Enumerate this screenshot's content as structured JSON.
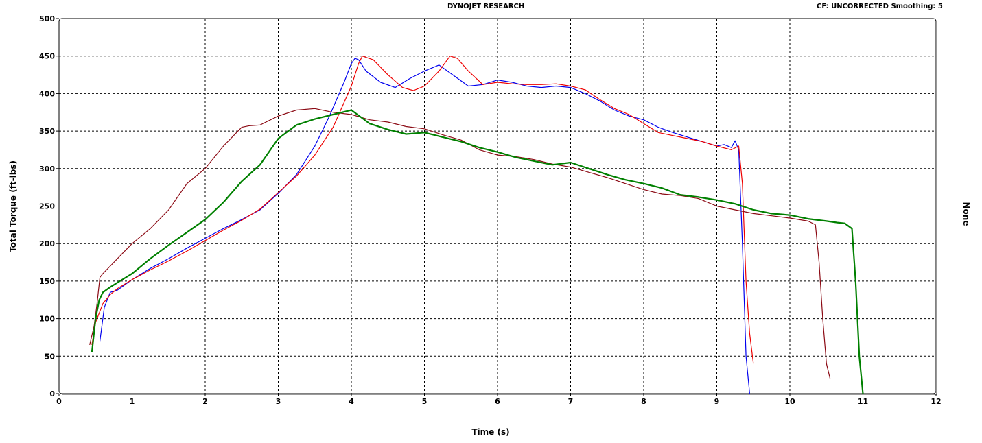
{
  "header": {
    "title": "DYNOJET RESEARCH",
    "cf_label": "CF: UNCORRECTED  Smoothing: 5"
  },
  "chart_data": {
    "type": "line",
    "xlabel": "Time (s)",
    "ylabel": "Total Torque (ft-lbs)",
    "right_label": "None",
    "xlim": [
      0,
      12
    ],
    "ylim": [
      0,
      500
    ],
    "xticks": [
      0,
      1,
      2,
      3,
      4,
      5,
      6,
      7,
      8,
      9,
      10,
      11,
      12
    ],
    "yticks": [
      0,
      50,
      100,
      150,
      200,
      250,
      300,
      350,
      400,
      450,
      500
    ],
    "grid": true,
    "series": [
      {
        "color": "#0000ee",
        "x": [
          0.56,
          0.62,
          0.7,
          0.8,
          0.9,
          1.0,
          1.25,
          1.5,
          1.75,
          2.0,
          2.25,
          2.5,
          2.75,
          3.0,
          3.25,
          3.5,
          3.7,
          3.9,
          4.0,
          4.05,
          4.1,
          4.2,
          4.4,
          4.6,
          4.8,
          5.0,
          5.2,
          5.4,
          5.6,
          5.8,
          6.0,
          6.2,
          6.4,
          6.6,
          6.8,
          7.0,
          7.2,
          7.4,
          7.6,
          7.8,
          8.0,
          8.2,
          8.4,
          8.6,
          8.8,
          9.0,
          9.1,
          9.2,
          9.25,
          9.3,
          9.35,
          9.4,
          9.45
        ],
        "y": [
          70,
          115,
          135,
          138,
          145,
          152,
          167,
          180,
          194,
          207,
          220,
          232,
          245,
          267,
          292,
          330,
          370,
          415,
          440,
          447,
          445,
          430,
          415,
          408,
          420,
          430,
          438,
          424,
          410,
          412,
          418,
          415,
          410,
          408,
          410,
          408,
          400,
          390,
          378,
          370,
          365,
          355,
          348,
          342,
          336,
          330,
          332,
          328,
          337,
          325,
          200,
          50,
          0
        ]
      },
      {
        "color": "#ee0000",
        "x": [
          0.45,
          0.5,
          0.6,
          0.7,
          0.8,
          0.9,
          1.0,
          1.25,
          1.5,
          1.75,
          2.0,
          2.25,
          2.5,
          2.75,
          3.0,
          3.25,
          3.5,
          3.75,
          4.0,
          4.1,
          4.15,
          4.3,
          4.5,
          4.7,
          4.85,
          5.0,
          5.2,
          5.35,
          5.45,
          5.6,
          5.8,
          6.0,
          6.2,
          6.4,
          6.6,
          6.8,
          7.0,
          7.2,
          7.4,
          7.6,
          7.8,
          8.0,
          8.2,
          8.4,
          8.6,
          8.8,
          9.0,
          9.2,
          9.3,
          9.35,
          9.4,
          9.45,
          9.5
        ],
        "y": [
          65,
          95,
          120,
          132,
          140,
          146,
          152,
          165,
          177,
          190,
          204,
          218,
          231,
          246,
          268,
          290,
          318,
          355,
          410,
          440,
          450,
          445,
          425,
          408,
          404,
          410,
          430,
          450,
          447,
          430,
          412,
          415,
          413,
          412,
          412,
          413,
          410,
          405,
          392,
          380,
          372,
          360,
          348,
          344,
          340,
          336,
          330,
          325,
          330,
          280,
          150,
          80,
          40
        ]
      },
      {
        "color": "#8b0a14",
        "x": [
          0.42,
          0.48,
          0.52,
          0.56,
          0.6,
          0.7,
          0.8,
          0.9,
          1.0,
          1.25,
          1.5,
          1.75,
          2.0,
          2.25,
          2.5,
          2.6,
          2.75,
          3.0,
          3.25,
          3.5,
          3.75,
          4.0,
          4.25,
          4.5,
          4.75,
          5.0,
          5.25,
          5.5,
          5.75,
          6.0,
          6.25,
          6.5,
          6.75,
          7.0,
          7.25,
          7.5,
          7.75,
          8.0,
          8.25,
          8.5,
          8.75,
          9.0,
          9.25,
          9.5,
          9.75,
          10.0,
          10.25,
          10.35,
          10.4,
          10.45,
          10.5,
          10.55
        ],
        "y": [
          65,
          90,
          120,
          155,
          160,
          170,
          180,
          190,
          200,
          220,
          245,
          280,
          300,
          330,
          355,
          357,
          358,
          370,
          378,
          380,
          375,
          372,
          365,
          362,
          356,
          353,
          345,
          338,
          325,
          318,
          316,
          312,
          306,
          302,
          295,
          288,
          280,
          272,
          266,
          264,
          260,
          250,
          245,
          240,
          237,
          234,
          230,
          225,
          175,
          100,
          40,
          20
        ]
      },
      {
        "color": "#008000",
        "x": [
          0.45,
          0.5,
          0.55,
          0.6,
          0.7,
          0.8,
          0.9,
          1.0,
          1.25,
          1.5,
          1.75,
          2.0,
          2.25,
          2.5,
          2.75,
          3.0,
          3.25,
          3.5,
          3.75,
          4.0,
          4.25,
          4.5,
          4.75,
          5.0,
          5.25,
          5.5,
          5.75,
          6.0,
          6.25,
          6.5,
          6.75,
          7.0,
          7.25,
          7.5,
          7.75,
          8.0,
          8.25,
          8.5,
          8.75,
          9.0,
          9.25,
          9.5,
          9.75,
          10.0,
          10.25,
          10.5,
          10.65,
          10.75,
          10.85,
          10.9,
          10.95,
          11.0
        ],
        "y": [
          55,
          100,
          125,
          135,
          142,
          148,
          154,
          160,
          180,
          198,
          215,
          232,
          255,
          283,
          305,
          340,
          358,
          366,
          372,
          378,
          360,
          352,
          346,
          348,
          342,
          336,
          328,
          322,
          315,
          310,
          305,
          308,
          300,
          292,
          285,
          280,
          274,
          265,
          262,
          258,
          253,
          245,
          240,
          238,
          233,
          230,
          228,
          227,
          220,
          150,
          50,
          0
        ]
      }
    ]
  }
}
